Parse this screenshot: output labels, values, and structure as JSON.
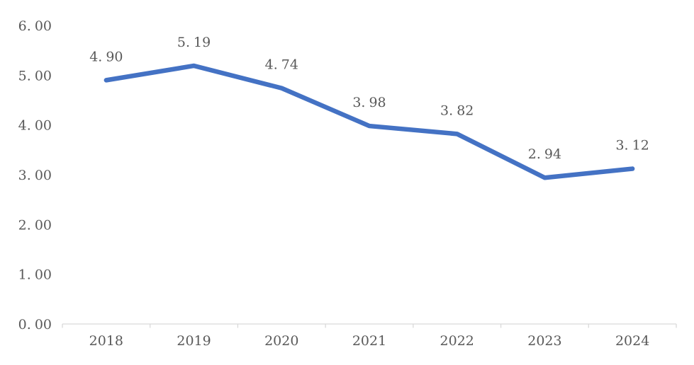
{
  "chart_data": {
    "type": "line",
    "title": "",
    "xlabel": "",
    "ylabel": "",
    "categories": [
      "2018",
      "2019",
      "2020",
      "2021",
      "2022",
      "2023",
      "2024"
    ],
    "values": [
      4.9,
      5.19,
      4.74,
      3.98,
      3.82,
      2.94,
      3.12
    ],
    "data_labels": [
      "4.90",
      "5.19",
      "4.74",
      "3.98",
      "3.82",
      "2.94",
      "3.12"
    ],
    "y_ticks": [
      "0.00",
      "1.00",
      "2.00",
      "3.00",
      "4.00",
      "5.00",
      "6.00"
    ],
    "y_tick_values": [
      0,
      1,
      2,
      3,
      4,
      5,
      6
    ],
    "ylim": [
      0,
      6
    ],
    "grid": false,
    "legend": "none",
    "colors": {
      "line": "#4472C4",
      "axis": "#D9D9D9",
      "text": "#595959"
    }
  }
}
